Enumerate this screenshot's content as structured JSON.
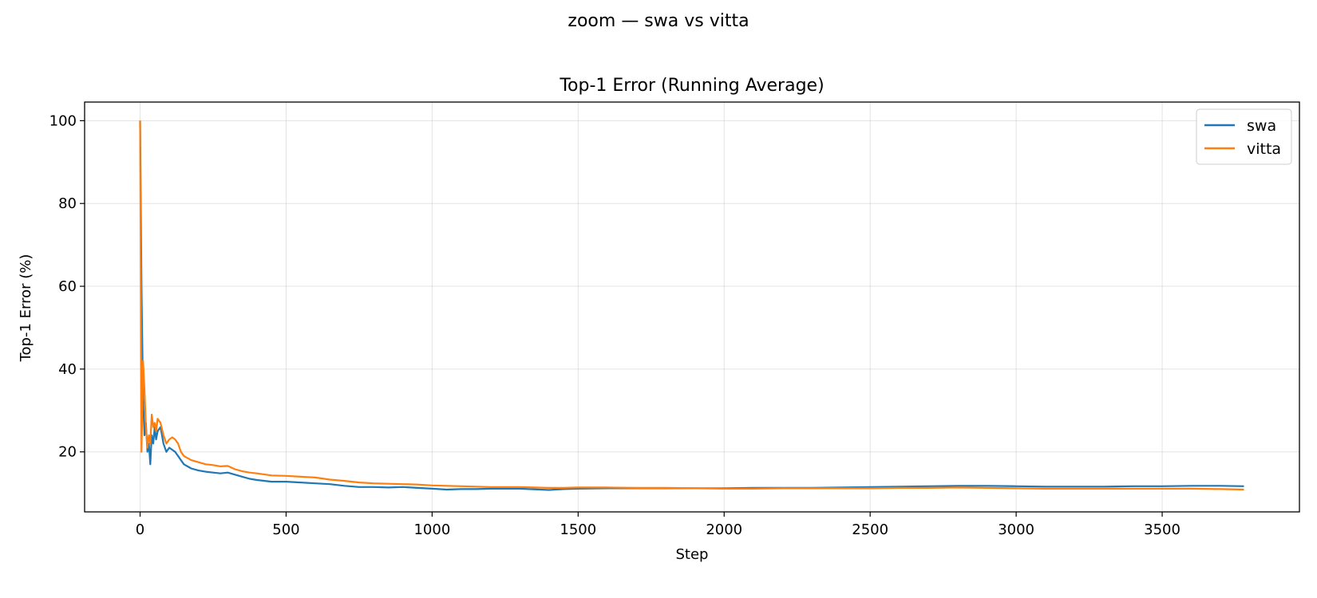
{
  "suptitle": "zoom — swa vs vitta",
  "chart_data": {
    "type": "line",
    "title": "Top-1 Error (Running Average)",
    "xlabel": "Step",
    "ylabel": "Top-1 Error (%)",
    "xlim": [
      -190,
      3970
    ],
    "ylim": [
      5.5,
      104.5
    ],
    "xticks": [
      0,
      500,
      1000,
      1500,
      2000,
      2500,
      3000,
      3500
    ],
    "yticks": [
      20,
      40,
      60,
      80,
      100
    ],
    "grid": true,
    "legend_position": "top-right",
    "series": [
      {
        "name": "swa",
        "color": "#1f77b4",
        "x": [
          0,
          5,
          10,
          15,
          20,
          25,
          30,
          35,
          40,
          45,
          50,
          55,
          60,
          70,
          80,
          90,
          100,
          110,
          120,
          130,
          140,
          150,
          175,
          200,
          225,
          250,
          275,
          300,
          325,
          350,
          375,
          400,
          450,
          500,
          550,
          600,
          650,
          700,
          750,
          800,
          850,
          900,
          950,
          1000,
          1050,
          1100,
          1150,
          1200,
          1300,
          1400,
          1450,
          1500,
          1600,
          1700,
          1800,
          1900,
          2000,
          2100,
          2200,
          2300,
          2400,
          2500,
          2600,
          2700,
          2800,
          2900,
          3000,
          3100,
          3200,
          3300,
          3400,
          3500,
          3600,
          3700,
          3780
        ],
        "values": [
          100,
          60,
          33,
          24,
          27,
          20,
          22,
          17,
          24,
          22,
          26,
          23,
          25,
          26,
          22,
          20,
          21,
          20.5,
          20,
          19,
          18,
          17,
          16,
          15.5,
          15.2,
          15,
          14.8,
          15,
          14.5,
          14,
          13.5,
          13.2,
          12.8,
          12.8,
          12.6,
          12.4,
          12.2,
          11.8,
          11.5,
          11.5,
          11.4,
          11.5,
          11.3,
          11.1,
          10.9,
          11,
          11,
          11.1,
          11.1,
          10.8,
          11,
          11.1,
          11.2,
          11.2,
          11.2,
          11.2,
          11.2,
          11.3,
          11.3,
          11.3,
          11.4,
          11.5,
          11.6,
          11.7,
          11.8,
          11.8,
          11.7,
          11.6,
          11.6,
          11.6,
          11.7,
          11.7,
          11.8,
          11.8,
          11.7
        ]
      },
      {
        "name": "vitta",
        "color": "#ff7f0e",
        "x": [
          0,
          5,
          10,
          15,
          20,
          25,
          30,
          35,
          40,
          45,
          50,
          55,
          60,
          70,
          80,
          90,
          100,
          110,
          120,
          130,
          140,
          150,
          175,
          200,
          225,
          250,
          275,
          300,
          325,
          350,
          375,
          400,
          450,
          500,
          550,
          600,
          650,
          700,
          750,
          800,
          850,
          900,
          950,
          1000,
          1050,
          1100,
          1150,
          1200,
          1300,
          1400,
          1450,
          1500,
          1600,
          1700,
          1800,
          1900,
          2000,
          2100,
          2200,
          2300,
          2400,
          2500,
          2600,
          2700,
          2800,
          2900,
          3000,
          3100,
          3200,
          3300,
          3400,
          3500,
          3600,
          3700,
          3780
        ],
        "values": [
          100,
          20,
          42,
          35,
          26,
          21,
          24,
          22,
          29,
          26,
          27,
          25,
          28,
          27,
          24,
          22,
          23,
          23.5,
          23,
          22,
          20,
          19,
          18,
          17.5,
          17,
          16.8,
          16.5,
          16.6,
          15.8,
          15.3,
          15,
          14.8,
          14.3,
          14.2,
          14,
          13.8,
          13.3,
          13,
          12.6,
          12.4,
          12.3,
          12.2,
          12.1,
          11.9,
          11.8,
          11.7,
          11.6,
          11.5,
          11.5,
          11.3,
          11.3,
          11.4,
          11.4,
          11.3,
          11.3,
          11.2,
          11.1,
          11.1,
          11.2,
          11.2,
          11.2,
          11.2,
          11.3,
          11.3,
          11.4,
          11.3,
          11.2,
          11.1,
          11.1,
          11.1,
          11.1,
          11.1,
          11.1,
          11,
          10.9
        ]
      }
    ]
  }
}
